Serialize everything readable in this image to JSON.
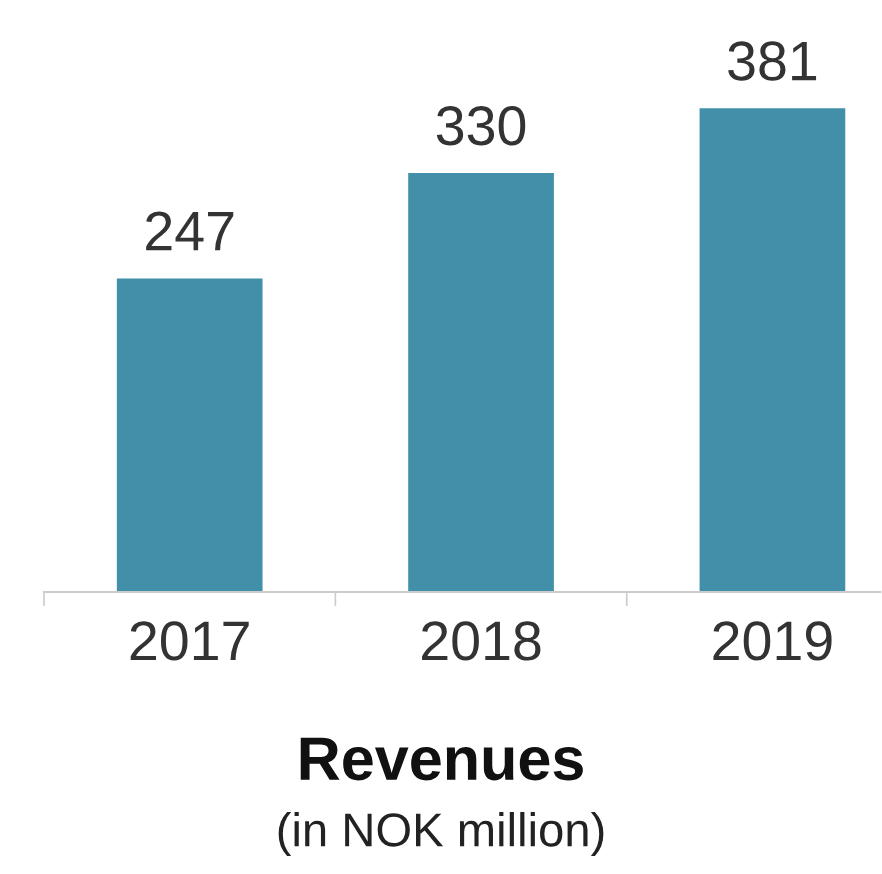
{
  "chart_data": {
    "type": "bar",
    "title": "Revenues",
    "subtitle": "(in NOK million)",
    "categories": [
      "2017",
      "2018",
      "2019"
    ],
    "values": [
      247,
      330,
      381
    ],
    "color": "#418fa8",
    "data_labels": true,
    "grid": false,
    "legend": false
  }
}
